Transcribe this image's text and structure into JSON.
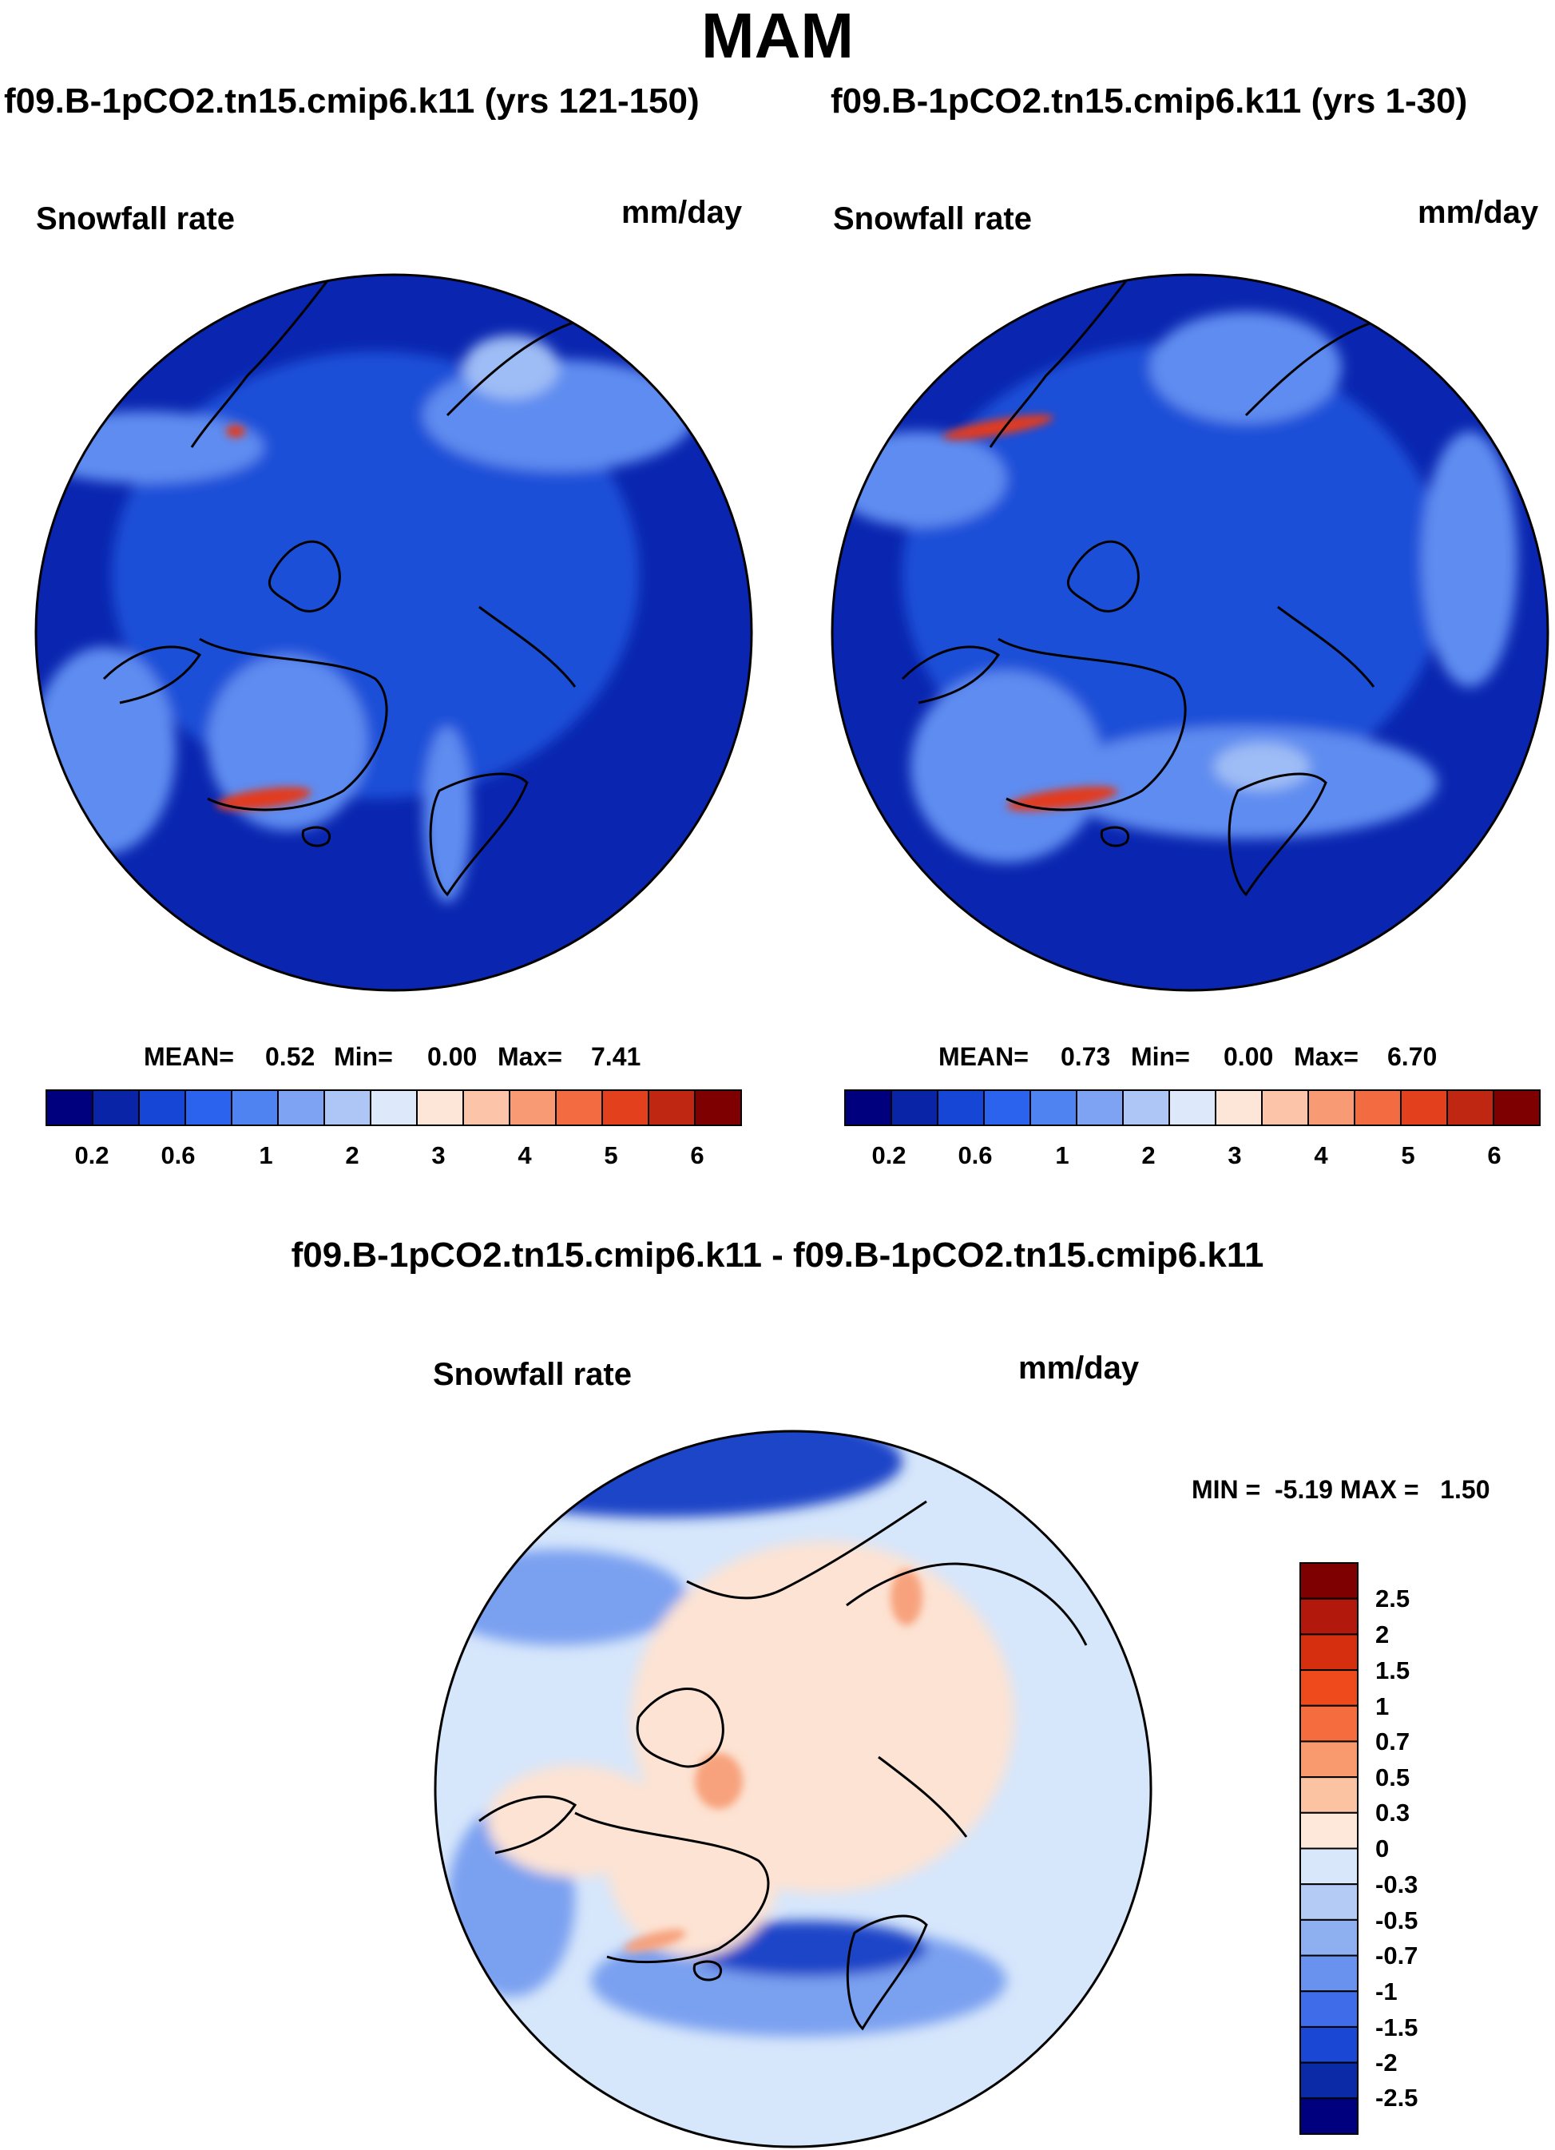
{
  "title": "MAM",
  "panels": [
    {
      "case_title": "f09.B-1pCO2.tn15.cmip6.k11 (yrs 121-150)",
      "field_label": "Snowfall rate",
      "units": "mm/day",
      "stats": {
        "mean_label": "MEAN=",
        "mean_value": "0.52",
        "min_label": "Min=",
        "min_value": "0.00",
        "max_label": "Max=",
        "max_value": "7.41"
      }
    },
    {
      "case_title": "f09.B-1pCO2.tn15.cmip6.k11 (yrs 1-30)",
      "field_label": "Snowfall rate",
      "units": "mm/day",
      "stats": {
        "mean_label": "MEAN=",
        "mean_value": "0.73",
        "min_label": "Min=",
        "min_value": "0.00",
        "max_label": "Max=",
        "max_value": "6.70"
      }
    }
  ],
  "abs_colorbar": {
    "colors": [
      "#00007f",
      "#0a24a8",
      "#1646d6",
      "#2b63ef",
      "#4f83f2",
      "#7fa3f3",
      "#aec6f6",
      "#dde9fb",
      "#fde6d8",
      "#fcc4a9",
      "#f89a73",
      "#f26b41",
      "#e3401e",
      "#c02712",
      "#7f0000"
    ],
    "tick_labels": [
      "0.2",
      "0.6",
      "1",
      "2",
      "3",
      "4",
      "5",
      "6"
    ]
  },
  "diff": {
    "title": "f09.B-1pCO2.tn15.cmip6.k11 - f09.B-1pCO2.tn15.cmip6.k11",
    "field_label": "Snowfall rate",
    "units": "mm/day",
    "minmax": "MIN =  -5.19 MAX =   1.50",
    "colorbar": {
      "colors_top_to_bottom": [
        "#7f0000",
        "#b2180b",
        "#d62f0f",
        "#ee4a1c",
        "#f56d3e",
        "#f99a6e",
        "#fcc3a3",
        "#fde8da",
        "#d9e7fb",
        "#b3cbf5",
        "#8eb0f1",
        "#6892ee",
        "#3f6ce9",
        "#1a48d4",
        "#0b2aa8",
        "#00007f"
      ],
      "tick_labels": [
        "2.5",
        "2",
        "1.5",
        "1",
        "0.7",
        "0.5",
        "0.3",
        "0",
        "-0.3",
        "-0.5",
        "-0.7",
        "-1",
        "-1.5",
        "-2",
        "-2.5"
      ]
    }
  },
  "colors": {
    "abs_background": "#0a26b0",
    "abs_field": "#1e4fd8",
    "abs_light": "#5f8cf0",
    "abs_pale": "#9ebcf5",
    "abs_high": "#e33a1c",
    "diff_background": "#d6e6fb",
    "diff_positive": "#fde3d3",
    "diff_positive_strong": "#f7a27d",
    "diff_negative": "#7aa0f0",
    "diff_negative_strong": "#1e44c8",
    "coastline": "#000000"
  }
}
